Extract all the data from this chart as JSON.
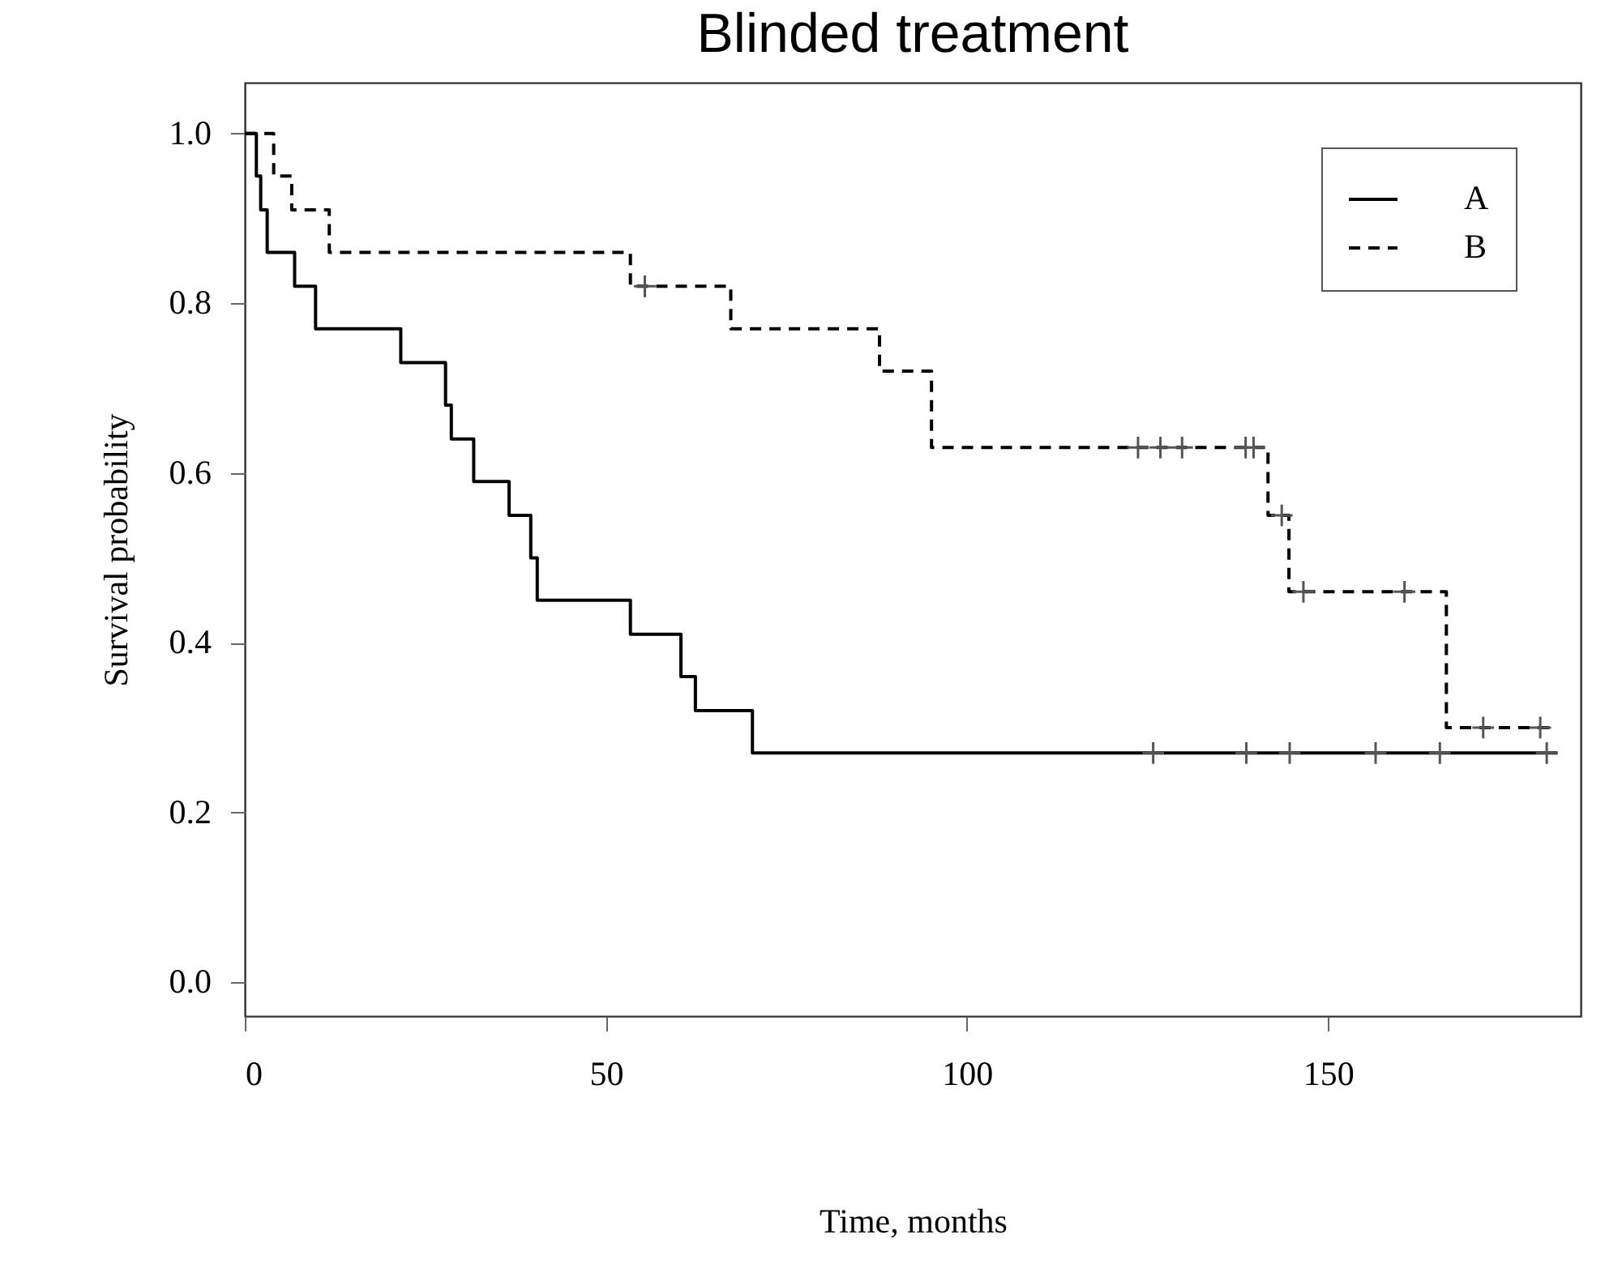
{
  "chart_data": {
    "type": "step",
    "title": "Blinded treatment",
    "xlabel": "Time, months",
    "ylabel": "Survival probability",
    "xlim": [
      0,
      185
    ],
    "xticks": [
      0,
      50,
      100,
      150
    ],
    "ylim": [
      -0.04,
      1.06
    ],
    "yticks": [
      {
        "value": 0,
        "label": "0.0"
      },
      0.2,
      0.4,
      0.6,
      0.8,
      {
        "value": 1,
        "label": "1.0"
      }
    ],
    "grid": false,
    "legend": "top right",
    "series": [
      {
        "name": "A",
        "color": "#000000",
        "line_style": "solid",
        "x": [
          0,
          1.6,
          2.2,
          3.1,
          6.9,
          9.8,
          21.6,
          27.8,
          28.6,
          31.7,
          36.6,
          39.6,
          40.5,
          53.4,
          60.4,
          62.4,
          70.3,
          181.8
        ],
        "values": [
          1,
          0.95,
          0.91,
          0.86,
          0.82,
          0.77,
          0.73,
          0.68,
          0.64,
          0.59,
          0.55,
          0.5,
          0.45,
          0.41,
          0.36,
          0.32,
          0.27,
          0.27
        ]
      },
      {
        "name": "B",
        "color": "#000000",
        "line_style": "dashed",
        "x": [
          0,
          4,
          6.5,
          11.7,
          53.4,
          67.3,
          87.9,
          95.1,
          141.7,
          144.6,
          166.4,
          181.3
        ],
        "values": [
          1,
          0.95,
          0.91,
          0.86,
          0.82,
          0.77,
          0.72,
          0.63,
          0.55,
          0.46,
          0.3,
          0.3
        ]
      },
      {
        "type": "scatter",
        "marker": "cross",
        "color": "#555555",
        "x": [
          125.8,
          138.7,
          144.7,
          156.6,
          165.5,
          180.3
        ],
        "values": [
          0.27,
          0.27,
          0.27,
          0.27,
          0.27,
          0.27
        ]
      },
      {
        "type": "scatter",
        "marker": "cross",
        "color": "#555555",
        "x": [
          55.4,
          123.7,
          126.8,
          129.8,
          138.6,
          139.7,
          143.6,
          146.6,
          160.6,
          171.5,
          179.4
        ],
        "values": [
          0.82,
          0.63,
          0.63,
          0.63,
          0.63,
          0.63,
          0.55,
          0.46,
          0.46,
          0.3,
          0.3
        ]
      }
    ]
  }
}
